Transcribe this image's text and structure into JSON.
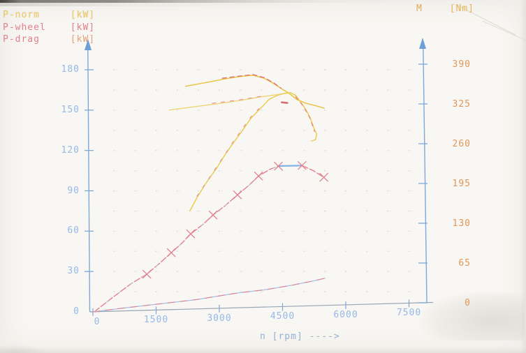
{
  "legend": {
    "items": [
      {
        "label": "P-norm",
        "unit": "[kW]"
      },
      {
        "label": "P-wheel",
        "unit": "[kW]"
      },
      {
        "label": "P-drag",
        "unit": "[kW]"
      }
    ]
  },
  "torque_legend": {
    "label": "M",
    "unit": "[Nm]"
  },
  "colors": {
    "axis_blue": "#7ea8da",
    "axis_gray": "#97a5b5",
    "tick_label_blue": "#96b9e6",
    "tick_label_orange": "#e0975a",
    "curve_yellow": "#e8c64a",
    "curve_pink": "#e57f8e",
    "plateau_blue": "#84b0e2",
    "grid_dot": "#d4d8db"
  },
  "chart_data": {
    "type": "line",
    "x_axis": {
      "title": "n [rpm] ---->",
      "min": 0,
      "max": 7500,
      "tick_labels": [
        "0",
        "1500",
        "3000",
        "4500",
        "6000",
        "7500"
      ]
    },
    "y_left_axis": {
      "unit": "kW",
      "min": 0,
      "max": 180,
      "tick_labels": [
        "180",
        "150",
        "120",
        "90",
        "60",
        "30",
        "0"
      ]
    },
    "y_right_axis": {
      "unit": "Nm",
      "min": 0,
      "max": 390,
      "tick_labels": [
        "390",
        "325",
        "260",
        "195",
        "130",
        "65",
        "0"
      ]
    },
    "grid": "dotted",
    "series": [
      {
        "name": "M",
        "axis": "right",
        "color": "#e8c64a",
        "width": 1.6,
        "points": [
          [
            2200,
            354
          ],
          [
            2770,
            361
          ],
          [
            3140,
            366
          ],
          [
            3520,
            370
          ],
          [
            3800,
            372
          ],
          [
            4065,
            367
          ],
          [
            4300,
            358
          ],
          [
            4500,
            349
          ],
          [
            4660,
            342
          ],
          [
            4845,
            332
          ],
          [
            5060,
            326
          ],
          [
            5290,
            322
          ],
          [
            5490,
            318
          ]
        ]
      },
      {
        "name": "M-red-trace",
        "axis": "right",
        "color": "#e06e7d",
        "width": 1.3,
        "dash": "6 5",
        "points": [
          [
            3070,
            367
          ],
          [
            3520,
            371
          ],
          [
            3800,
            373
          ],
          [
            4065,
            368
          ],
          [
            4300,
            359
          ],
          [
            4460,
            351
          ]
        ]
      },
      {
        "name": "M-secondary",
        "axis": "right",
        "color": "#eed576",
        "width": 1.4,
        "points": [
          [
            1810,
            315
          ],
          [
            2240,
            319
          ],
          [
            2690,
            323
          ],
          [
            3140,
            327
          ],
          [
            3600,
            332
          ],
          [
            4015,
            337
          ],
          [
            4350,
            340
          ],
          [
            4630,
            343
          ]
        ]
      },
      {
        "name": "M-secondary-red-trace",
        "axis": "right",
        "color": "#e78b97",
        "width": 1.1,
        "dash": "5 8",
        "points": [
          [
            2830,
            326
          ],
          [
            3300,
            330
          ],
          [
            3600,
            333
          ],
          [
            4100,
            339
          ]
        ]
      },
      {
        "name": "P-norm",
        "axis": "left",
        "color": "#ebcd52",
        "width": 1.5,
        "points": [
          [
            2300,
            75
          ],
          [
            2470,
            85
          ],
          [
            2690,
            96
          ],
          [
            2940,
            107
          ],
          [
            3140,
            117
          ],
          [
            3340,
            126
          ],
          [
            3550,
            135
          ],
          [
            3750,
            144
          ],
          [
            3970,
            151
          ],
          [
            4180,
            158
          ],
          [
            4380,
            161
          ],
          [
            4550,
            162.5
          ],
          [
            4680,
            163
          ],
          [
            4810,
            161
          ],
          [
            4930,
            156
          ],
          [
            5040,
            151
          ],
          [
            5160,
            144
          ],
          [
            5240,
            137
          ],
          [
            5310,
            132
          ],
          [
            5280,
            128
          ],
          [
            5190,
            127
          ]
        ]
      },
      {
        "name": "P-norm-red-trace-rise",
        "axis": "left",
        "color": "#e88d99",
        "width": 1.1,
        "dash": "4 11",
        "points": [
          [
            2470,
            86
          ],
          [
            2940,
            108
          ],
          [
            3340,
            127
          ],
          [
            3750,
            145
          ],
          [
            3970,
            152
          ]
        ]
      },
      {
        "name": "P-norm-red-trace-fall",
        "axis": "left",
        "color": "#e27b89",
        "width": 1.1,
        "dash": "5 6",
        "points": [
          [
            4810,
            160
          ],
          [
            4990,
            153
          ],
          [
            5150,
            144
          ],
          [
            5260,
            134
          ]
        ]
      },
      {
        "name": "red-dash-mark",
        "axis": "left",
        "color": "#d96a78",
        "width": 2.6,
        "dash": "8 4",
        "points": [
          [
            4480,
            155.8
          ],
          [
            4650,
            155.2
          ]
        ]
      },
      {
        "name": "P-wheel-rise",
        "axis": "left",
        "color": "#e57f8e",
        "width": 1.4,
        "dash": "9 3",
        "points": [
          [
            30,
            0
          ],
          [
            480,
            11
          ],
          [
            910,
            21
          ],
          [
            1280,
            28
          ],
          [
            1580,
            36
          ],
          [
            1860,
            44
          ],
          [
            2110,
            51
          ],
          [
            2320,
            58
          ],
          [
            2610,
            65
          ],
          [
            2850,
            72
          ],
          [
            3140,
            79
          ],
          [
            3430,
            87
          ],
          [
            3700,
            94
          ],
          [
            3930,
            101
          ],
          [
            4200,
            106
          ],
          [
            4400,
            108.3
          ]
        ]
      },
      {
        "name": "P-wheel-blue-trace",
        "axis": "left",
        "color": "#adc9ec",
        "width": 1,
        "dash": "3 19",
        "points": [
          [
            30,
            0
          ],
          [
            480,
            11
          ],
          [
            910,
            21
          ],
          [
            1280,
            28
          ],
          [
            1580,
            36
          ],
          [
            1860,
            44
          ],
          [
            2110,
            51
          ],
          [
            2320,
            58
          ],
          [
            2610,
            65
          ],
          [
            2850,
            72
          ],
          [
            3140,
            79
          ],
          [
            3430,
            87
          ],
          [
            3700,
            94
          ],
          [
            3930,
            101
          ],
          [
            4200,
            106
          ],
          [
            4400,
            108.3
          ]
        ]
      },
      {
        "name": "P-wheel-plateau",
        "axis": "left",
        "color": "#84b0e2",
        "width": 2.2,
        "points": [
          [
            4400,
            108.4
          ],
          [
            4960,
            108.8
          ]
        ]
      },
      {
        "name": "P-wheel-fall",
        "axis": "left",
        "color": "#e57f8e",
        "width": 1.4,
        "dash": "9 3",
        "points": [
          [
            4960,
            108.8
          ],
          [
            5230,
            105
          ],
          [
            5480,
            100
          ]
        ]
      },
      {
        "name": "P-wheel-markers",
        "axis": "left",
        "marker": "x",
        "color": "#e27b8b",
        "size": 6,
        "points": [
          [
            1280,
            28
          ],
          [
            1860,
            44
          ],
          [
            2320,
            58
          ],
          [
            2850,
            72
          ],
          [
            3430,
            87
          ],
          [
            3930,
            101
          ],
          [
            4400,
            108.3
          ],
          [
            4960,
            108.8
          ],
          [
            5480,
            100
          ]
        ]
      },
      {
        "name": "P-drag",
        "axis": "left",
        "color": "#a3c3e8",
        "width": 1.3,
        "points": [
          [
            0,
            0
          ],
          [
            780,
            3
          ],
          [
            1610,
            6
          ],
          [
            2440,
            9
          ],
          [
            3430,
            14
          ],
          [
            4100,
            16.5
          ],
          [
            4760,
            20
          ],
          [
            5230,
            23
          ],
          [
            5510,
            25
          ]
        ]
      },
      {
        "name": "P-drag-red-trace",
        "axis": "left",
        "color": "#e28492",
        "width": 1.1,
        "dash": "10 8",
        "points": [
          [
            0,
            0
          ],
          [
            780,
            3
          ],
          [
            1610,
            6
          ],
          [
            2440,
            9
          ],
          [
            3430,
            14
          ],
          [
            4100,
            16.5
          ],
          [
            4760,
            20
          ],
          [
            5230,
            23
          ],
          [
            5510,
            25
          ]
        ]
      }
    ]
  }
}
